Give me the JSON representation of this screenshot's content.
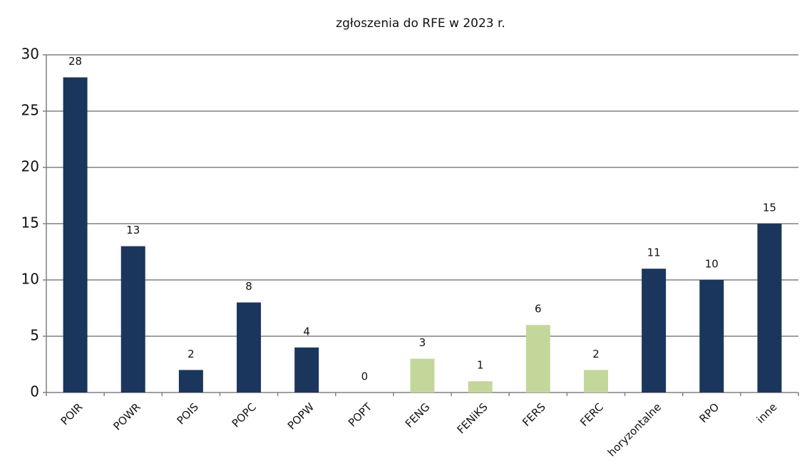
{
  "chart_data": {
    "type": "bar",
    "title": "zgłoszenia do RFE w 2023 r.",
    "categories": [
      "POIR",
      "POWR",
      "POIS",
      "POPC",
      "POPW",
      "POPT",
      "FENG",
      "FENiKS",
      "FERS",
      "FERC",
      "horyzontalne",
      "RPO",
      "inne"
    ],
    "values": [
      28,
      13,
      2,
      8,
      4,
      0,
      3,
      1,
      6,
      2,
      11,
      10,
      15
    ],
    "colors": [
      "#1b365d",
      "#1b365d",
      "#1b365d",
      "#1b365d",
      "#1b365d",
      "#1b365d",
      "#c4d79b",
      "#c4d79b",
      "#c4d79b",
      "#c4d79b",
      "#1b365d",
      "#1b365d",
      "#1b365d"
    ],
    "ylim": [
      0,
      30
    ],
    "yticks": [
      0,
      5,
      10,
      15,
      20,
      25,
      30
    ],
    "grid": true
  }
}
